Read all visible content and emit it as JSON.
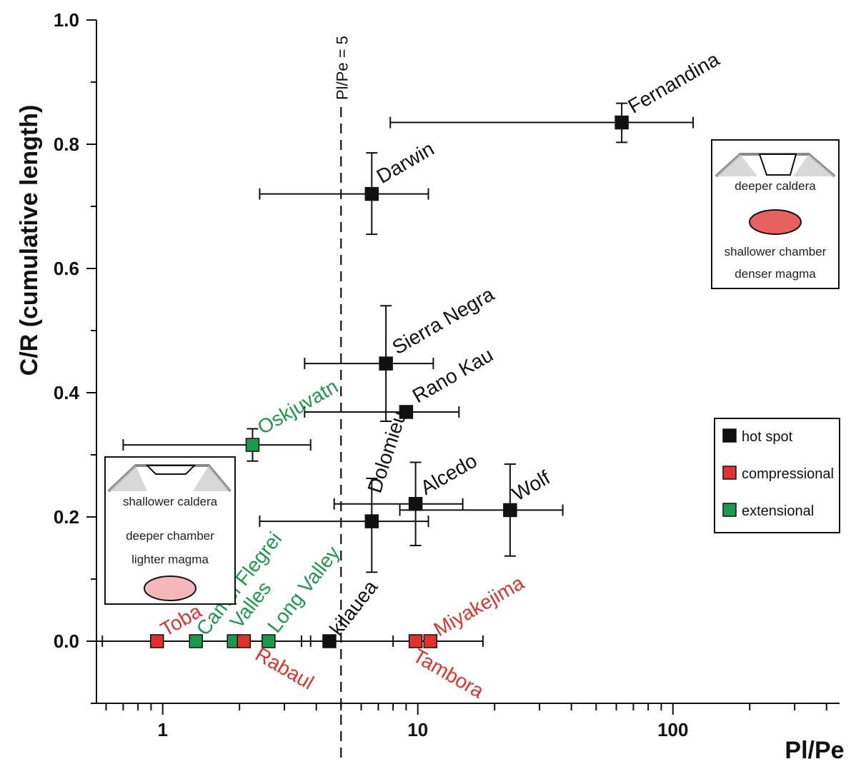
{
  "chart_data": {
    "type": "scatter",
    "xlabel": "Pl/Pe",
    "ylabel": "C/R (cumulative length)",
    "xscale": "log",
    "xlim": [
      0.55,
      450
    ],
    "ylim": [
      -0.1,
      1.0
    ],
    "x_ticks": [
      1,
      10,
      100
    ],
    "y_ticks": [
      0.0,
      0.2,
      0.4,
      0.6,
      0.8,
      1.0
    ],
    "y_tick_labels": [
      "0.0",
      "0.2",
      "0.4",
      "0.6",
      "0.8",
      "1.0"
    ],
    "x_tick_labels": [
      "1",
      "10",
      "100"
    ],
    "reference_line": {
      "x": 5,
      "label": "Pl/Pe = 5",
      "style": "dashed"
    },
    "colors": {
      "hot spot": "#111111",
      "compressional": "#e0312b",
      "extensional": "#1a9a4a"
    },
    "legend": {
      "placement": "right",
      "entries": [
        {
          "label": "hot spot",
          "category": "hot spot"
        },
        {
          "label": "compressional",
          "category": "compressional"
        },
        {
          "label": "extensional",
          "category": "extensional"
        }
      ]
    },
    "points": [
      {
        "name": "Fernandina",
        "category": "hot spot",
        "x": 63,
        "y": 0.835,
        "x_err": [
          7.8,
          120
        ],
        "y_err": [
          0.803,
          0.866
        ]
      },
      {
        "name": "Darwin",
        "category": "hot spot",
        "x": 6.6,
        "y": 0.72,
        "x_err": [
          2.4,
          11
        ],
        "y_err": [
          0.655,
          0.786
        ]
      },
      {
        "name": "Sierra Negra",
        "category": "hot spot",
        "x": 7.5,
        "y": 0.447,
        "x_err": [
          3.6,
          11.5
        ],
        "y_err": [
          0.354,
          0.54
        ]
      },
      {
        "name": "Rano Kau",
        "category": "hot spot",
        "x": 9,
        "y": 0.369,
        "x_err": [
          3.6,
          14.5
        ],
        "y_err": null
      },
      {
        "name": "Oskjuvatn",
        "category": "extensional",
        "x": 2.25,
        "y": 0.316,
        "x_err": [
          0.7,
          3.8
        ],
        "y_err": [
          0.29,
          0.342
        ]
      },
      {
        "name": "Dolomieu",
        "category": "hot spot",
        "x": 6.6,
        "y": 0.193,
        "x_err": [
          2.4,
          11
        ],
        "y_err": [
          0.111,
          0.262
        ]
      },
      {
        "name": "Alcedo",
        "category": "hot spot",
        "x": 9.8,
        "y": 0.221,
        "x_err": [
          4.7,
          15
        ],
        "y_err": [
          0.154,
          0.288
        ]
      },
      {
        "name": "Wolf",
        "category": "hot spot",
        "x": 23,
        "y": 0.211,
        "x_err": [
          8.5,
          37
        ],
        "y_err": [
          0.137,
          0.285
        ]
      },
      {
        "name": "Toba",
        "category": "compressional",
        "x": 0.95,
        "y": 0.0,
        "x_err": null,
        "y_err": null
      },
      {
        "name": "Campi Flegrei",
        "category": "extensional",
        "x": 1.35,
        "y": 0.0,
        "x_err": null,
        "y_err": null
      },
      {
        "name": "Valles",
        "category": "extensional",
        "x": 1.9,
        "y": 0.0,
        "x_err": null,
        "y_err": null
      },
      {
        "name": "Rabaul",
        "category": "compressional",
        "x": 2.08,
        "y": 0.0,
        "x_err": null,
        "y_err": null
      },
      {
        "name": "Long Valley",
        "category": "extensional",
        "x": 2.6,
        "y": 0.0,
        "x_err": null,
        "y_err": null
      },
      {
        "name": "kilauea",
        "category": "hot spot",
        "x": 4.5,
        "y": 0.0,
        "x_err": null,
        "y_err": null
      },
      {
        "name": "Tambora",
        "category": "compressional",
        "x": 9.8,
        "y": 0.0,
        "x_err": null,
        "y_err": null
      },
      {
        "name": "Miyakejima",
        "category": "compressional",
        "x": 11.2,
        "y": 0.0,
        "x_err": null,
        "y_err": null
      }
    ],
    "zero_row_error_bar": {
      "x_range": [
        0.55,
        18
      ],
      "cap_x": [
        0.58,
        1.4,
        3.5,
        3.8,
        8,
        18
      ]
    },
    "insets": [
      {
        "id": "deep",
        "lines": [
          "deeper caldera",
          "shallower chamber",
          "denser magma"
        ],
        "ellipse_color": "#e86060"
      },
      {
        "id": "shallow",
        "lines": [
          "shallower  caldera",
          "deeper chamber",
          "lighter magma"
        ],
        "ellipse_color": "#f4b8ba"
      }
    ]
  }
}
